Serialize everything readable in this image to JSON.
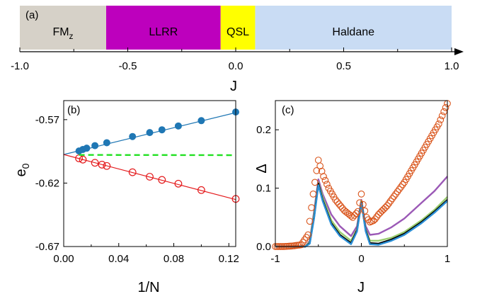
{
  "chart_data": [
    {
      "panel_label": "(a)",
      "type": "bar",
      "xlabel": "J",
      "xlim": [
        -1.0,
        1.0
      ],
      "ticks": [
        "-1.0",
        "-0.5",
        "0.0",
        "0.5",
        "1.0"
      ],
      "tick_values": [
        -1.0,
        -0.5,
        0.0,
        0.5,
        1.0
      ],
      "segments": [
        {
          "label": "FM",
          "sub": "z",
          "start": -1.0,
          "end": -0.6,
          "color": "#d6d1c8"
        },
        {
          "label": "LLRR",
          "start": -0.6,
          "end": -0.07,
          "color": "#bd00bd"
        },
        {
          "label": "QSL",
          "start": -0.07,
          "end": 0.09,
          "color": "#ffff00"
        },
        {
          "label": "Haldane",
          "start": 0.09,
          "end": 1.0,
          "color": "#c9dcf4"
        }
      ]
    },
    {
      "panel_label": "(b)",
      "type": "scatter",
      "xlabel": "1/N",
      "ylabel": "e",
      "ylabel_sub": "0",
      "xlim": [
        0,
        0.125
      ],
      "ylim": [
        -0.67,
        -0.555
      ],
      "xticks": [
        "0.00",
        "0.04",
        "0.08",
        "0.12"
      ],
      "xtick_values": [
        0,
        0.04,
        0.08,
        0.12
      ],
      "yticks": [
        "-0.57",
        "-0.62",
        "-0.67"
      ],
      "ytick_values": [
        -0.57,
        -0.62,
        -0.67
      ],
      "series": [
        {
          "color": "#1f77b4",
          "marker": "filled-circle",
          "x": [
            0.0111,
            0.0139,
            0.0167,
            0.0227,
            0.0313,
            0.05,
            0.0625,
            0.0714,
            0.0833,
            0.1,
            0.125
          ],
          "y": [
            -0.5947,
            -0.5935,
            -0.5925,
            -0.5905,
            -0.5882,
            -0.5833,
            -0.5802,
            -0.578,
            -0.575,
            -0.5708,
            -0.564
          ],
          "fit": {
            "x": [
              0,
              0.125
            ],
            "y": [
              -0.5975,
              -0.5645
            ]
          }
        },
        {
          "color": "#e41a1c",
          "marker": "open-circle",
          "x": [
            0.0111,
            0.0139,
            0.0227,
            0.0278,
            0.0313,
            0.05,
            0.0625,
            0.0714,
            0.0833,
            0.1,
            0.125
          ],
          "y": [
            -0.6005,
            -0.6015,
            -0.604,
            -0.6055,
            -0.6065,
            -0.6115,
            -0.615,
            -0.6175,
            -0.6205,
            -0.6255,
            -0.6325
          ],
          "fit": {
            "x": [
              0,
              0.125
            ],
            "y": [
              -0.5975,
              -0.633
            ]
          }
        },
        {
          "color": "#22e022",
          "style": "dashed",
          "x": [
            0.0111,
            0.125
          ],
          "y": [
            -0.5978,
            -0.598
          ]
        }
      ]
    },
    {
      "panel_label": "(c)",
      "type": "line",
      "xlabel": "J",
      "ylabel": "Δ",
      "xlim": [
        -1,
        1
      ],
      "ylim": [
        0,
        0.25
      ],
      "xticks": [
        "-1",
        "0",
        "1"
      ],
      "xtick_values": [
        -1,
        0,
        1
      ],
      "yticks": [
        "0.0",
        "0.1",
        "0.2"
      ],
      "ytick_values": [
        0,
        0.1,
        0.2
      ],
      "series": [
        {
          "color": "#d95319",
          "marker": "open-circle",
          "x": [
            -1.0,
            -0.9,
            -0.8,
            -0.7,
            -0.62,
            -0.56,
            -0.52,
            -0.5,
            -0.48,
            -0.44,
            -0.38,
            -0.3,
            -0.2,
            -0.1,
            -0.04,
            0.0,
            0.02,
            0.06,
            0.1,
            0.15,
            0.2,
            0.3,
            0.4,
            0.5,
            0.6,
            0.7,
            0.8,
            0.9,
            1.0
          ],
          "y": [
            0.0,
            0.0,
            0.001,
            0.003,
            0.02,
            0.09,
            0.13,
            0.148,
            0.138,
            0.12,
            0.1,
            0.08,
            0.062,
            0.05,
            0.06,
            0.09,
            0.072,
            0.05,
            0.042,
            0.045,
            0.055,
            0.07,
            0.09,
            0.11,
            0.135,
            0.16,
            0.185,
            0.21,
            0.245
          ]
        },
        {
          "color": "#9b59b6",
          "x": [
            -1.0,
            -0.8,
            -0.65,
            -0.6,
            -0.55,
            -0.5,
            -0.45,
            -0.35,
            -0.25,
            -0.12,
            -0.05,
            0.0,
            0.05,
            0.1,
            0.2,
            0.35,
            0.5,
            0.7,
            0.85,
            1.0
          ],
          "y": [
            0.0,
            0.0,
            0.0,
            0.01,
            0.06,
            0.115,
            0.09,
            0.055,
            0.035,
            0.018,
            0.035,
            0.08,
            0.035,
            0.02,
            0.022,
            0.033,
            0.048,
            0.075,
            0.095,
            0.12
          ]
        },
        {
          "color": "#9acd70",
          "x": [
            -1.0,
            -0.8,
            -0.65,
            -0.6,
            -0.55,
            -0.5,
            -0.45,
            -0.35,
            -0.25,
            -0.12,
            -0.05,
            0.0,
            0.05,
            0.1,
            0.2,
            0.35,
            0.5,
            0.7,
            0.85,
            1.0
          ],
          "y": [
            0.0,
            0.0,
            0.0,
            0.008,
            0.055,
            0.11,
            0.085,
            0.045,
            0.025,
            0.01,
            0.03,
            0.078,
            0.03,
            0.01,
            0.01,
            0.015,
            0.025,
            0.045,
            0.063,
            0.085
          ]
        },
        {
          "color": "#000000",
          "x": [
            -1.0,
            -0.8,
            -0.65,
            -0.6,
            -0.55,
            -0.5,
            -0.45,
            -0.35,
            -0.25,
            -0.12,
            -0.05,
            0.0,
            0.05,
            0.1,
            0.2,
            0.35,
            0.5,
            0.7,
            0.85,
            1.0
          ],
          "y": [
            0.0,
            0.0,
            0.0,
            0.006,
            0.05,
            0.108,
            0.08,
            0.04,
            0.02,
            0.006,
            0.028,
            0.076,
            0.028,
            0.006,
            0.005,
            0.012,
            0.022,
            0.042,
            0.06,
            0.08
          ]
        },
        {
          "color": "#2b8fd6",
          "x": [
            -1.0,
            -0.8,
            -0.65,
            -0.6,
            -0.55,
            -0.5,
            -0.45,
            -0.35,
            -0.25,
            -0.12,
            -0.05,
            0.0,
            0.05,
            0.1,
            0.2,
            0.35,
            0.5,
            0.7,
            0.85,
            1.0
          ],
          "y": [
            0.0,
            0.0,
            0.0,
            0.005,
            0.048,
            0.105,
            0.078,
            0.038,
            0.018,
            0.004,
            0.026,
            0.074,
            0.026,
            0.004,
            0.003,
            0.01,
            0.02,
            0.04,
            0.058,
            0.078
          ]
        }
      ]
    }
  ]
}
